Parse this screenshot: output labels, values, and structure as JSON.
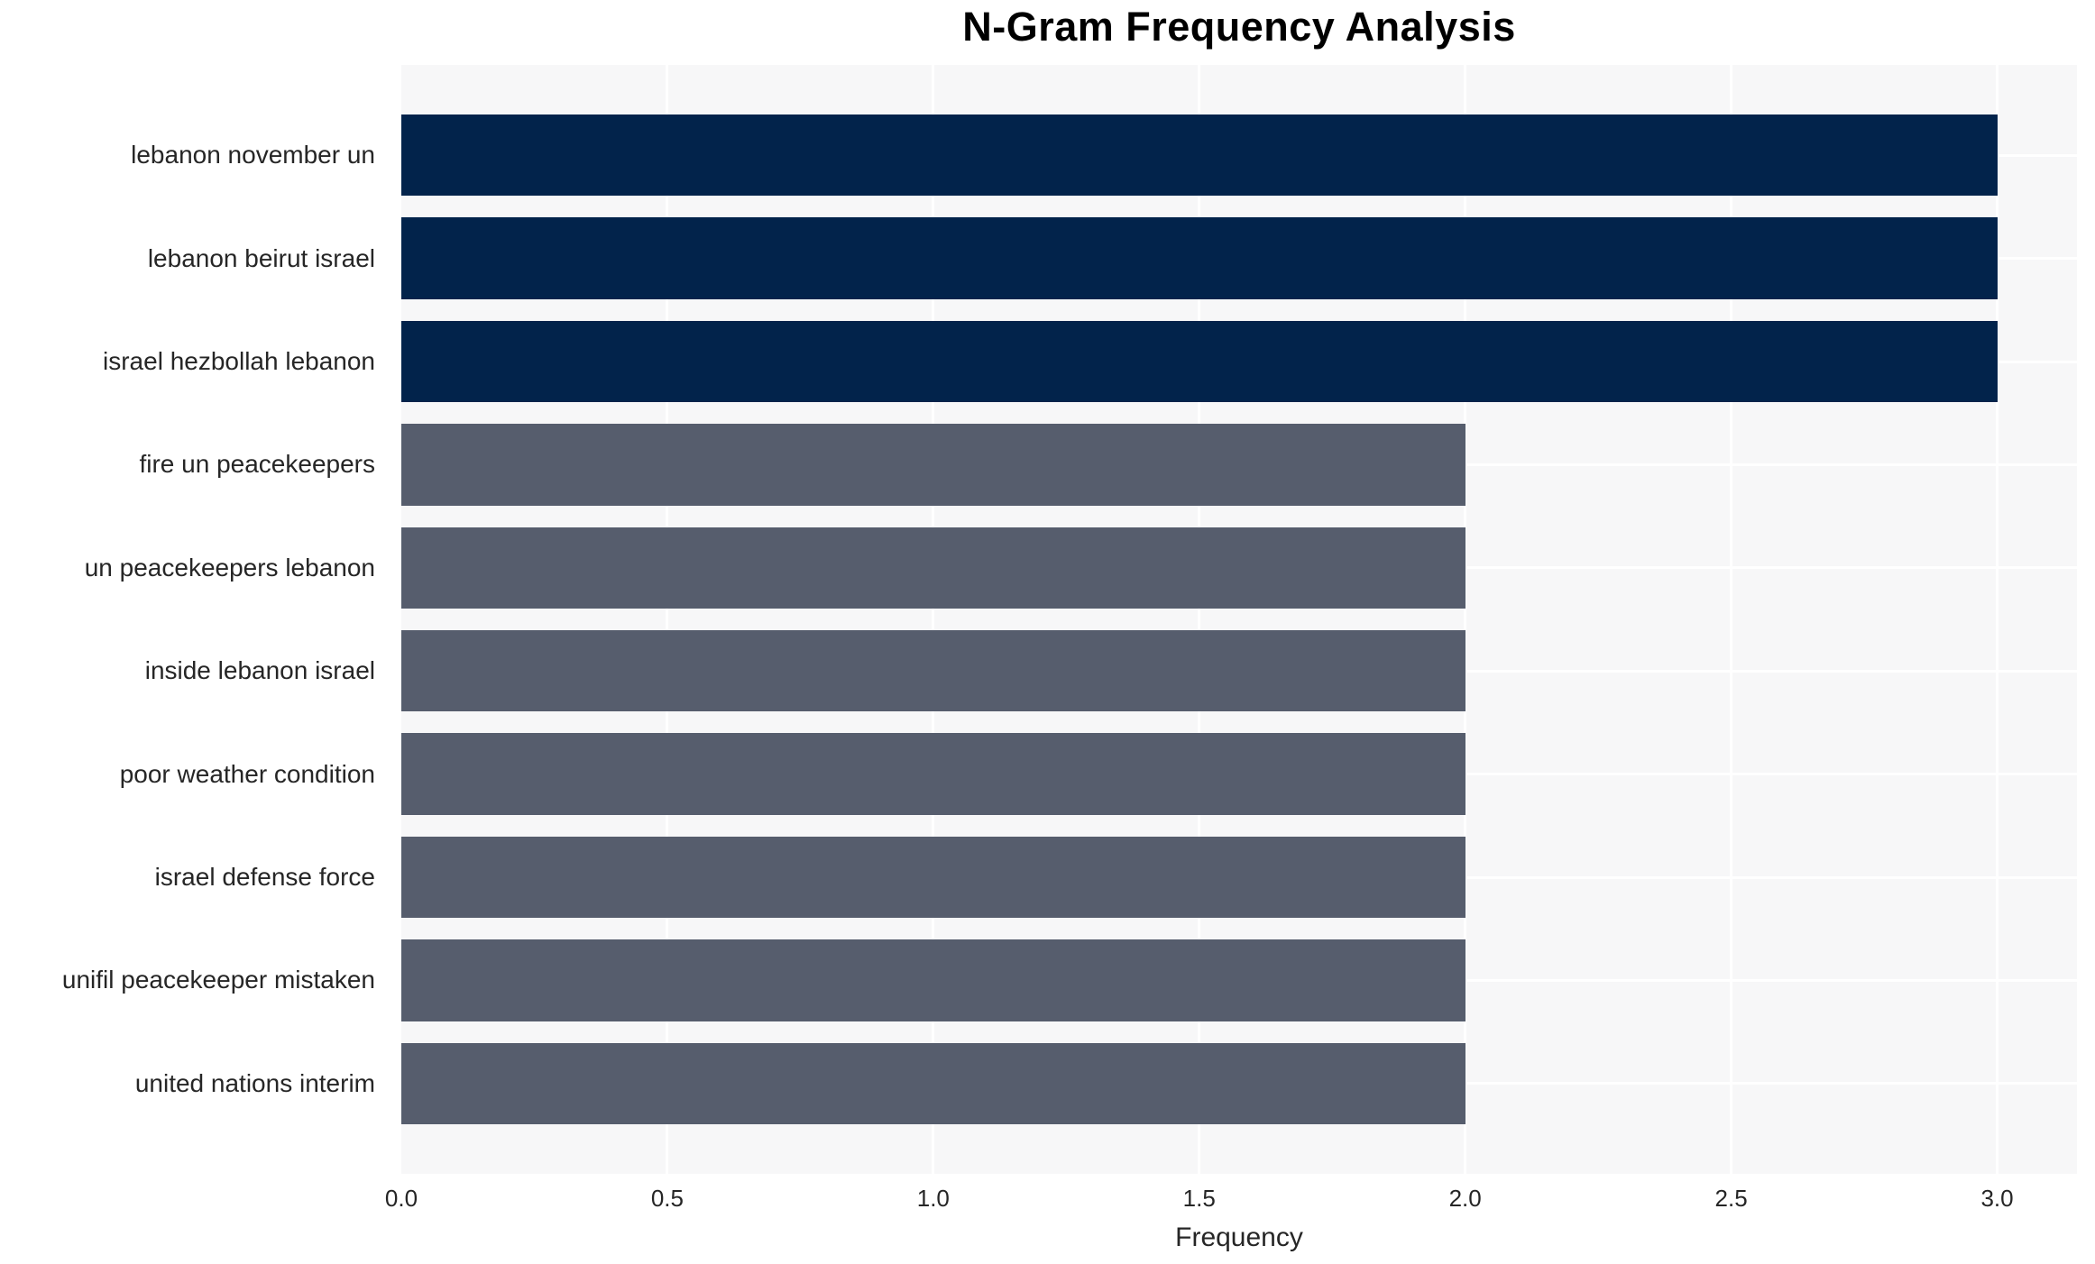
{
  "chart_data": {
    "type": "bar",
    "orientation": "horizontal",
    "title": "N-Gram Frequency Analysis",
    "xlabel": "Frequency",
    "ylabel": "",
    "categories": [
      "lebanon november un",
      "lebanon beirut israel",
      "israel hezbollah lebanon",
      "fire un peacekeepers",
      "un peacekeepers lebanon",
      "inside lebanon israel",
      "poor weather condition",
      "israel defense force",
      "unifil peacekeeper mistaken",
      "united nations interim"
    ],
    "values": [
      3,
      3,
      3,
      2,
      2,
      2,
      2,
      2,
      2,
      2
    ],
    "bar_colors": [
      "#02234B",
      "#02234B",
      "#02234B",
      "#565D6D",
      "#565D6D",
      "#565D6D",
      "#565D6D",
      "#565D6D",
      "#565D6D",
      "#565D6D"
    ],
    "xticks": [
      0,
      0.5,
      1,
      1.5,
      2,
      2.5,
      3
    ],
    "xtick_labels": [
      "0.0",
      "0.5",
      "1.0",
      "1.5",
      "2.0",
      "2.5",
      "3.0"
    ],
    "xlim": [
      0,
      3.15
    ],
    "grid": true,
    "legend": false,
    "colors": {
      "bar_high": "#02234B",
      "bar_low": "#565D6D",
      "plot_background": "#F7F7F8",
      "gridline": "#FFFFFF",
      "text": "#262626",
      "title_text": "#000000",
      "page_background": "#FFFFFF"
    }
  }
}
